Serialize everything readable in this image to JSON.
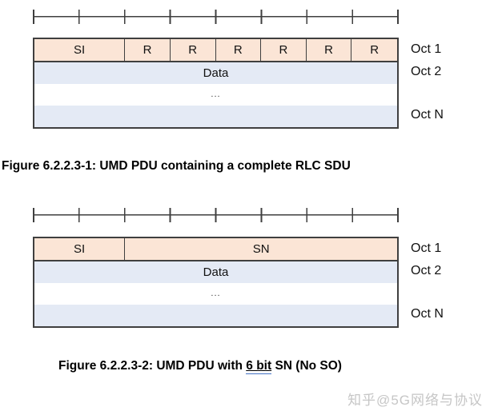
{
  "colors": {
    "header_fill": "#fbe5d6",
    "data_fill": "#e4eaf5",
    "border": "#3f3f3f",
    "caption_underline": "#4472c4",
    "watermark_gray": "#c6c6c6"
  },
  "figure1": {
    "caption": "Figure 6.2.2.3-1: UMD PDU containing a complete RLC SDU",
    "header_cells": [
      {
        "label": "SI",
        "span": 2
      },
      {
        "label": "R",
        "span": 1
      },
      {
        "label": "R",
        "span": 1
      },
      {
        "label": "R",
        "span": 1
      },
      {
        "label": "R",
        "span": 1
      },
      {
        "label": "R",
        "span": 1
      },
      {
        "label": "R",
        "span": 1
      }
    ],
    "data_label": "Data",
    "ellipsis": "...",
    "oct_labels": [
      "Oct 1",
      "Oct 2",
      "Oct N"
    ]
  },
  "figure2": {
    "caption_prefix": "Figure 6.2.2.3-2: UMD PDU with ",
    "caption_underlined": "6 bit",
    "caption_suffix": " SN (No SO)",
    "header_cells": [
      {
        "label": "SI",
        "span": 2
      },
      {
        "label": "SN",
        "span": 6
      }
    ],
    "data_label": "Data",
    "ellipsis": "...",
    "oct_labels": [
      "Oct 1",
      "Oct 2",
      "Oct N"
    ]
  },
  "watermark": "知乎@5G网络与协议"
}
